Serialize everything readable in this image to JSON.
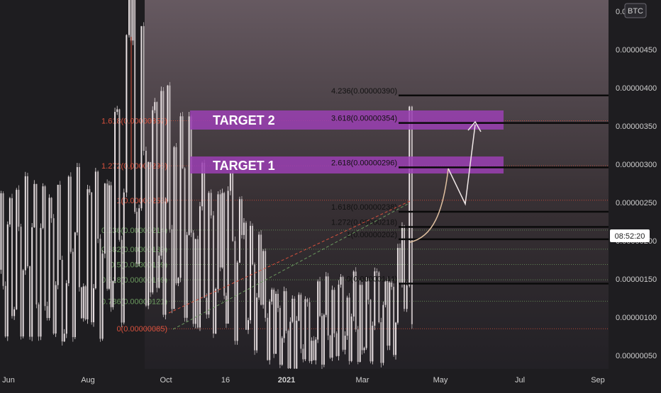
{
  "chart_data": {
    "type": "candlestick",
    "symbol_badge": "BTC",
    "time_readout": "08:52:20",
    "x_ticks": [
      "Jun",
      "Aug",
      "Oct",
      "16",
      "2021",
      "Mar",
      "May",
      "Jul",
      "Sep"
    ],
    "y_ticks": [
      "0.00000050",
      "0.00000100",
      "0.00000150",
      "0.00000200",
      "0.00000250",
      "0.00000300",
      "0.00000350",
      "0.00000400",
      "0.00000450",
      "0.0"
    ],
    "price_label_note": "price scale in BTC",
    "annotations": {
      "target1": "TARGET 1",
      "target2": "TARGET 2"
    },
    "fib_left": [
      {
        "label": "1.618(0.00000357)",
        "value": 3.57e-06,
        "color": "#d8513d"
      },
      {
        "label": "1.272(0.00000298)",
        "value": 2.98e-06,
        "color": "#d8513d"
      },
      {
        "label": "1(0.00000253)",
        "value": 2.53e-06,
        "color": "#d8513d"
      },
      {
        "label": "0.236(0.00000214)",
        "value": 2.14e-06,
        "color": "#6b9a5f"
      },
      {
        "label": "0.382(0.00000189)",
        "value": 1.89e-06,
        "color": "#6b9a5f"
      },
      {
        "label": "0.5(0.00000169)",
        "value": 1.69e-06,
        "color": "#6b9a5f"
      },
      {
        "label": "0.618(0.00000149)",
        "value": 1.49e-06,
        "color": "#6b9a5f"
      },
      {
        "label": "0.786(0.00000121)",
        "value": 1.21e-06,
        "color": "#6b9a5f"
      },
      {
        "label": "0(0.00000085)",
        "value": 8.5e-07,
        "color": "#d8513d"
      }
    ],
    "fib_right": [
      {
        "label": "4.236(0.00000390)",
        "value": 3.9e-06
      },
      {
        "label": "3.618(0.00000354)",
        "value": 3.54e-06
      },
      {
        "label": "2.618(0.00000296)",
        "value": 2.96e-06
      },
      {
        "label": "1.618(0.00000238)",
        "value": 2.38e-06
      },
      {
        "label": "1.272(0.00000218)",
        "value": 2.18e-06
      },
      {
        "label": "1(0.00000202)",
        "value": 2.02e-06
      },
      {
        "label": "0(0.00000144)",
        "value": 1.44e-06
      }
    ],
    "series": [
      {
        "x": "2020-05-20",
        "close": 1.6e-06
      },
      {
        "x": "2020-06-01",
        "close": 1.75e-06
      },
      {
        "x": "2020-06-20",
        "close": 1.8e-06
      },
      {
        "x": "2020-07-10",
        "close": 1.7e-06
      },
      {
        "x": "2020-07-25",
        "close": 1.95e-06
      },
      {
        "x": "2020-08-05",
        "close": 1.85e-06
      },
      {
        "x": "2020-08-14",
        "close": 1.7e-06
      },
      {
        "x": "2020-08-20",
        "close": 2.4e-06
      },
      {
        "x": "2020-08-27",
        "close": 2.1e-06
      },
      {
        "x": "2020-08-31",
        "close": 4.2e-06
      },
      {
        "x": "2020-09-06",
        "close": 3.2e-06
      },
      {
        "x": "2020-09-15",
        "close": 2.8e-06
      },
      {
        "x": "2020-09-25",
        "close": 2.55e-06
      },
      {
        "x": "2020-10-05",
        "close": 2.5e-06
      },
      {
        "x": "2020-10-20",
        "close": 2.2e-06
      },
      {
        "x": "2020-11-01",
        "close": 1.8e-06
      },
      {
        "x": "2020-11-10",
        "close": 1.6e-06
      },
      {
        "x": "2020-11-16",
        "close": 1.9e-06
      },
      {
        "x": "2020-11-25",
        "close": 1.6e-06
      },
      {
        "x": "2020-12-10",
        "close": 1.3e-06
      },
      {
        "x": "2020-12-20",
        "close": 9e-07
      },
      {
        "x": "2021-01-05",
        "close": 8e-07
      },
      {
        "x": "2021-01-20",
        "close": 9e-07
      },
      {
        "x": "2021-02-05",
        "close": 1e-06
      },
      {
        "x": "2021-02-15",
        "close": 1.1e-06
      },
      {
        "x": "2021-02-25",
        "close": 9.5e-07
      },
      {
        "x": "2021-03-10",
        "close": 1e-06
      },
      {
        "x": "2021-03-20",
        "close": 9.5e-07
      },
      {
        "x": "2021-03-28",
        "close": 1.2e-06
      },
      {
        "x": "2021-04-02",
        "close": 1.5e-06
      },
      {
        "x": "2021-04-06",
        "close": 2.4e-06
      },
      {
        "x": "2021-04-08",
        "close": 2e-06
      }
    ]
  }
}
